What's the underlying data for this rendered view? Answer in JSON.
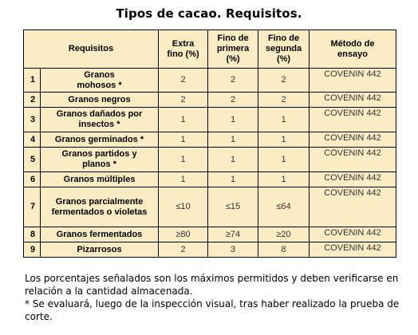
{
  "title": "Tipos de cacao. Requisitos.",
  "table": {
    "headers": {
      "requisitos": "Requisitos",
      "extra": "Extra fino (%)",
      "primera": "Fino de primera (%)",
      "segunda": "Fino de segunda (%)",
      "metodo": "Método de ensayo"
    },
    "rows": [
      {
        "num": "1",
        "name": "Granos mohosos *",
        "extra": "2",
        "primera": "2",
        "segunda": "2",
        "method": "COVENIN 442"
      },
      {
        "num": "2",
        "name": "Granos negros",
        "extra": "2",
        "primera": "2",
        "segunda": "2",
        "method": "COVENIN 442"
      },
      {
        "num": "3",
        "name": "Granos dañados por insectos *",
        "extra": "1",
        "primera": "1",
        "segunda": "1",
        "method": "COVENIN 442"
      },
      {
        "num": "4",
        "name": "Granos germinados *",
        "extra": "1",
        "primera": "1",
        "segunda": "1",
        "method": "COVENIN 442"
      },
      {
        "num": "5",
        "name": "Granos partidos y planos *",
        "extra": "1",
        "primera": "1",
        "segunda": "1",
        "method": "COVENIN 442"
      },
      {
        "num": "6",
        "name": "Granos múltiples",
        "extra": "1",
        "primera": "1",
        "segunda": "1",
        "method": "COVENIN 442"
      },
      {
        "num": "7",
        "name": "Granos parcialmente fermentados o violetas",
        "extra": "≤10",
        "primera": "≤15",
        "segunda": "≤64",
        "method": "COVENIN 442"
      },
      {
        "num": "8",
        "name": "Granos fermentados",
        "extra": "≥80",
        "primera": "≥74",
        "segunda": "≥20",
        "method": "COVENIN 442"
      },
      {
        "num": "9",
        "name": "Pizarrosos",
        "extra": "2",
        "primera": "3",
        "segunda": "8",
        "method": "COVENIN 442"
      }
    ]
  },
  "notes": {
    "line1": "Los porcentajes señalados son los máximos permitidos y deben verificarse en relación a la cantidad almacenada.",
    "line2": "* Se evaluará, luego de la inspección visual, tras haber realizado la prueba de corte."
  }
}
